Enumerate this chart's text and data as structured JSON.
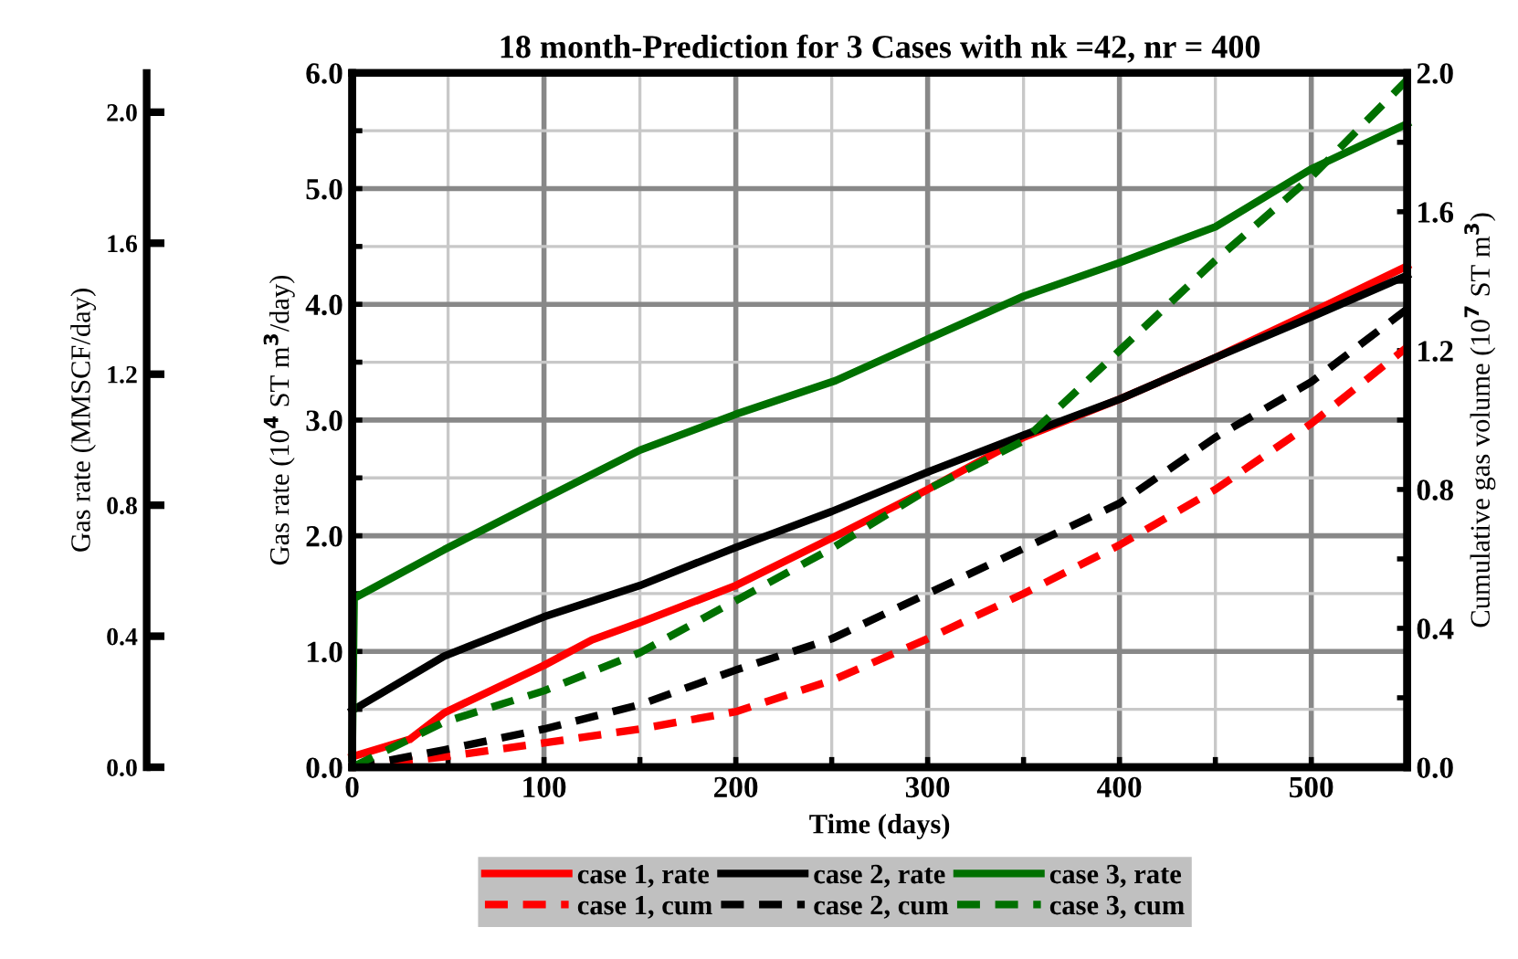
{
  "chart_data": {
    "type": "line",
    "title": "18 month-Prediction for 3 Cases with nk =42, nr = 400",
    "xlabel": "Time (days)",
    "ylabel": "Gas rate (10$^{4}$ ST m$^{3}$/day)",
    "y2label": "Cumulative gas volume (10$^{7}$ ST m$^{3}$)",
    "y3label": "Gas rate (MMSCF/day)",
    "xlim": [
      0,
      550
    ],
    "xticks": [
      0,
      {
        "value": 50,
        "label": null
      },
      100,
      {
        "value": 150,
        "label": null
      },
      200,
      {
        "value": 250,
        "label": null
      },
      300,
      {
        "value": 350,
        "label": null
      },
      400,
      {
        "value": 450,
        "label": null
      },
      500
    ],
    "ylim": [
      0,
      6.0
    ],
    "yticks": [
      {
        "value": 0,
        "label": "0.0"
      },
      {
        "value": 0.5,
        "label": null
      },
      {
        "value": 1,
        "label": "1.0"
      },
      {
        "value": 1.5,
        "label": null
      },
      {
        "value": 2,
        "label": "2.0"
      },
      {
        "value": 2.5,
        "label": null
      },
      {
        "value": 3,
        "label": "3.0"
      },
      {
        "value": 3.5,
        "label": null
      },
      {
        "value": 4,
        "label": "4.0"
      },
      {
        "value": 4.5,
        "label": null
      },
      {
        "value": 5,
        "label": "5.0"
      },
      {
        "value": 5.5,
        "label": null
      },
      {
        "value": 6,
        "label": "6.0"
      }
    ],
    "y2lim": [
      0,
      2.0
    ],
    "y2ticks": [
      {
        "value": 0,
        "label": "0.0"
      },
      {
        "value": 0.2,
        "label": null
      },
      0.4,
      {
        "value": 0.6,
        "label": null
      },
      0.8,
      {
        "value": 1.0,
        "label": null
      },
      1.2,
      {
        "value": 1.4,
        "label": null
      },
      1.6,
      {
        "value": 1.8,
        "label": null
      },
      {
        "value": 2,
        "label": "2.0"
      }
    ],
    "y3lim": [
      0,
      2.12
    ],
    "y3ticks": [
      {
        "value": 0,
        "label": "0.0"
      },
      0.4,
      0.8,
      1.2,
      1.6,
      {
        "value": 2,
        "label": "2.0"
      }
    ],
    "grid": true,
    "legend": "bottom",
    "marker": "none",
    "series": [
      {
        "name": "case 1, rate",
        "color": "#ff0000",
        "line_style": "solid",
        "axis": "y",
        "x": [
          0,
          30,
          48,
          100,
          125,
          150,
          200,
          250,
          300,
          350,
          400,
          450,
          500,
          550
        ],
        "values": [
          0.09,
          0.24,
          0.47,
          0.88,
          1.1,
          1.25,
          1.57,
          1.98,
          2.4,
          2.85,
          3.18,
          3.54,
          3.93,
          4.33
        ]
      },
      {
        "name": "case 2, rate",
        "color": "#000000",
        "line_style": "solid",
        "axis": "y",
        "x": [
          0,
          48,
          100,
          150,
          200,
          250,
          300,
          350,
          400,
          450,
          500,
          550
        ],
        "values": [
          0.49,
          0.96,
          1.3,
          1.57,
          1.9,
          2.21,
          2.55,
          2.87,
          3.18,
          3.54,
          3.89,
          4.25
        ]
      },
      {
        "name": "case 3, rate",
        "color": "#007000",
        "line_style": "solid",
        "axis": "y",
        "x": [
          0,
          1,
          48,
          100,
          150,
          200,
          252,
          300,
          350,
          400,
          450,
          500,
          550
        ],
        "values": [
          0.08,
          1.46,
          1.88,
          2.32,
          2.74,
          3.05,
          3.34,
          3.7,
          4.07,
          4.36,
          4.67,
          5.17,
          5.56
        ]
      },
      {
        "name": "case 1, cum",
        "color": "#ff0000",
        "line_style": "dashed",
        "axis": "y2",
        "x": [
          0,
          48,
          100,
          150,
          200,
          250,
          300,
          350,
          400,
          450,
          500,
          550
        ],
        "values": [
          0,
          0.03,
          0.07,
          0.11,
          0.16,
          0.25,
          0.37,
          0.5,
          0.64,
          0.8,
          0.99,
          1.21
        ]
      },
      {
        "name": "case 2, cum",
        "color": "#000000",
        "line_style": "dashed",
        "axis": "y2",
        "x": [
          0,
          48,
          100,
          150,
          200,
          250,
          300,
          350,
          400,
          450,
          500,
          550
        ],
        "values": [
          0,
          0.05,
          0.11,
          0.18,
          0.28,
          0.37,
          0.5,
          0.63,
          0.76,
          0.95,
          1.11,
          1.32
        ]
      },
      {
        "name": "case 3, cum",
        "color": "#007000",
        "line_style": "dashed",
        "axis": "y2",
        "x": [
          0,
          48,
          100,
          150,
          200,
          250,
          300,
          350,
          400,
          450,
          500,
          550
        ],
        "values": [
          0,
          0.13,
          0.22,
          0.33,
          0.48,
          0.63,
          0.8,
          0.94,
          1.2,
          1.46,
          1.7,
          1.98
        ]
      }
    ]
  }
}
